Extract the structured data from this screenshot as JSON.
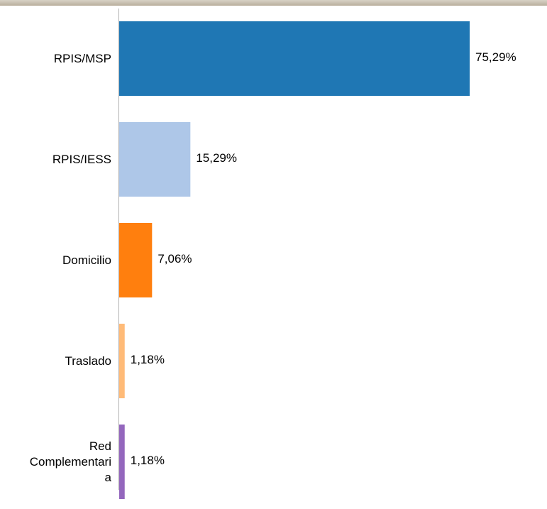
{
  "chart_data": {
    "type": "hbar",
    "categories": [
      "RPIS/MSP",
      "RPIS/IESS",
      "Domicilio",
      "Traslado",
      "Red Complementaria"
    ],
    "values": [
      75.29,
      15.29,
      7.06,
      1.18,
      1.18
    ],
    "value_labels": [
      "75,29%",
      "15,29%",
      "7,06%",
      "1,18%",
      "1,18%"
    ],
    "colors": [
      "#1f77b4",
      "#aec7e8",
      "#ff7f0e",
      "#ffbb78",
      "#9467bd"
    ]
  }
}
